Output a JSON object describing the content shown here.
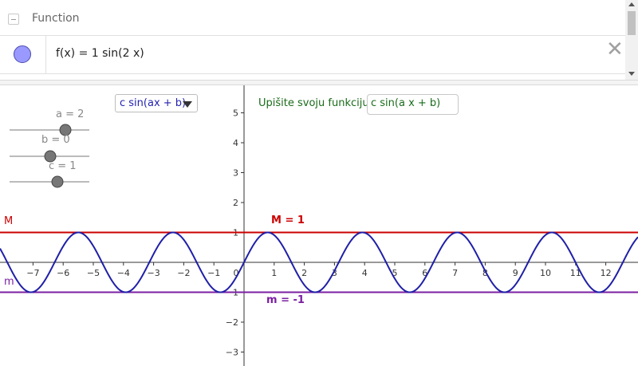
{
  "algebra": {
    "header_label": "Function",
    "formula": "f(x)  =  1 sin(2 x)",
    "delete_icon": "close-icon",
    "object_color": "#9999ff"
  },
  "sliders": [
    {
      "label": "a = 2",
      "value": 2,
      "min": 0,
      "max": 4
    },
    {
      "label": "b = 0",
      "value": 0,
      "min": -2,
      "max": 2
    },
    {
      "label": "c = 1",
      "value": 1,
      "min": -5,
      "max": 5
    }
  ],
  "dropdown": {
    "selected": "c sin(ax + b)"
  },
  "input": {
    "caption": "Upišite svoju funkciju:",
    "value": "c sin(a x + b)"
  },
  "lines": {
    "max": {
      "name": "M",
      "label": "M = 1",
      "y": 1,
      "color": "#cc0000"
    },
    "min": {
      "name": "m",
      "label": "m = -1",
      "y": -1,
      "color": "#7a1fa2"
    }
  },
  "chart_data": {
    "type": "line",
    "function": "c sin(a x + b)",
    "params": {
      "a": 2,
      "b": 0,
      "c": 1
    },
    "x_ticks": [
      -7,
      -6,
      -5,
      -4,
      -3,
      -2,
      -1,
      0,
      1,
      2,
      3,
      4,
      5,
      6,
      7,
      8,
      9,
      10,
      11,
      12
    ],
    "y_ticks": [
      -3,
      -2,
      -1,
      1,
      2,
      3,
      4,
      5
    ],
    "xlim": [
      -8,
      13.2
    ],
    "ylim": [
      -3.5,
      5.5
    ],
    "curve_color": "#1f1fa8",
    "grid": false
  }
}
